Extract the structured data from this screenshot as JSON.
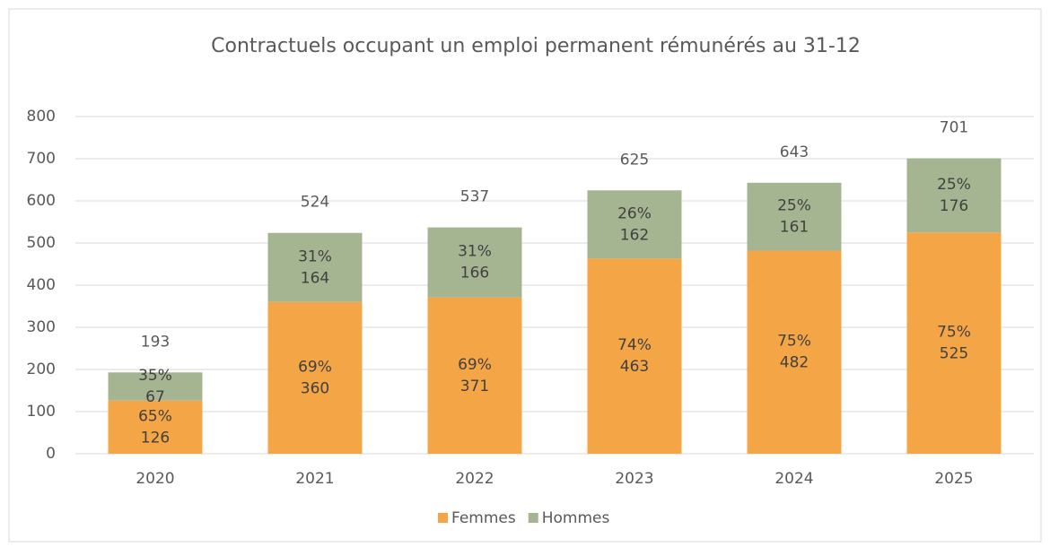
{
  "chart_data": {
    "type": "stacked_bar",
    "title": "Contractuels occupant un emploi permanent rémunérés au 31-12",
    "categories": [
      "2020",
      "2021",
      "2022",
      "2023",
      "2024",
      "2025"
    ],
    "series": [
      {
        "name": "Femmes",
        "color": "#f4a546",
        "values": [
          126,
          360,
          371,
          463,
          482,
          525
        ],
        "percent_labels": [
          "65%",
          "69%",
          "69%",
          "74%",
          "75%",
          "75%"
        ]
      },
      {
        "name": "Hommes",
        "color": "#a5b592",
        "values": [
          67,
          164,
          166,
          162,
          161,
          176
        ],
        "percent_labels": [
          "35%",
          "31%",
          "31%",
          "26%",
          "25%",
          "25%"
        ]
      }
    ],
    "totals": [
      193,
      524,
      537,
      625,
      643,
      701
    ],
    "ylim": [
      0,
      800
    ],
    "yticks": [
      0,
      100,
      200,
      300,
      400,
      500,
      600,
      700,
      800
    ],
    "grid": true,
    "legend": "bottom"
  }
}
